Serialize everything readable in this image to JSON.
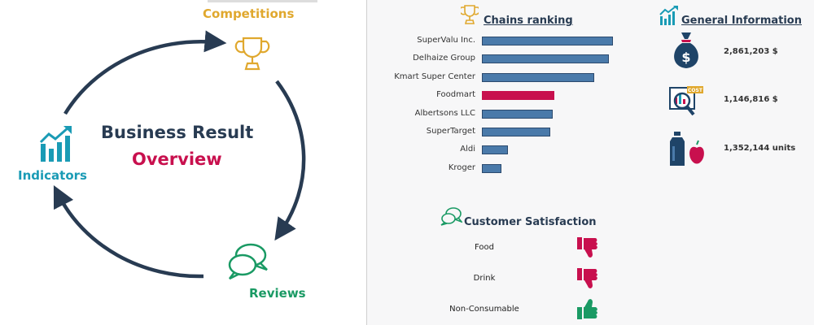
{
  "left": {
    "competitions_label": "Competitions",
    "indicators_label": "Indicators",
    "reviews_label": "Reviews",
    "title_line1": "Business Result",
    "title_line2": "Overview"
  },
  "chains": {
    "title": "Chains ranking",
    "bar_color": "#4a7aaa",
    "highlight_color": "#c8104e",
    "items": [
      {
        "name": "SuperValu Inc.",
        "value": 100
      },
      {
        "name": "Delhaize Group",
        "value": 97
      },
      {
        "name": "Kmart Super Center",
        "value": 86
      },
      {
        "name": "Foodmart",
        "value": 55,
        "highlight": true
      },
      {
        "name": "Albertsons LLC",
        "value": 54
      },
      {
        "name": "SuperTarget",
        "value": 52
      },
      {
        "name": "Aldi",
        "value": 20
      },
      {
        "name": "Kroger",
        "value": 15
      }
    ]
  },
  "general": {
    "title": "General Information",
    "items": [
      {
        "icon": "money-bag-icon",
        "value": "2,861,203 $"
      },
      {
        "icon": "cost-analysis-icon",
        "value": "1,146,816 $"
      },
      {
        "icon": "groceries-icon",
        "value": "1,352,144 units"
      }
    ]
  },
  "satisfaction": {
    "title": "Customer Satisfaction",
    "items": [
      {
        "label": "Food",
        "rating": "thumbs-down"
      },
      {
        "label": "Drink",
        "rating": "thumbs-down"
      },
      {
        "label": "Non-Consumable",
        "rating": "thumbs-up"
      }
    ]
  },
  "colors": {
    "navy": "#283b52",
    "crimson": "#c8104e",
    "gold": "#e0a82e",
    "teal": "#1a9bb5",
    "green": "#1a9a64"
  }
}
